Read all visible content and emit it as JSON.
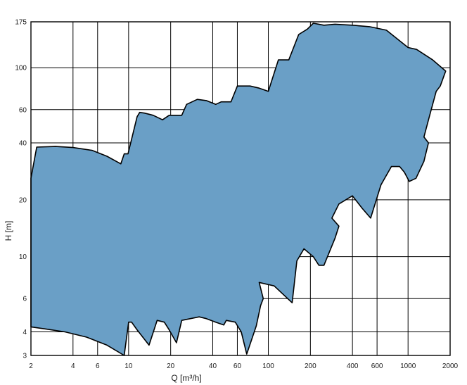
{
  "chart_data": {
    "type": "area",
    "title": "",
    "xlabel": "Q [m³/h]",
    "ylabel": "H [m]",
    "x_scale": "log",
    "y_scale": "log",
    "xlim": [
      2,
      2000
    ],
    "ylim": [
      3,
      175
    ],
    "grid": true,
    "fill_color": "#6a9fc6",
    "outline_color": "#000000",
    "grid_color": "#000000",
    "x_ticks": [
      {
        "value": 2,
        "label": "2"
      },
      {
        "value": 4,
        "label": "4"
      },
      {
        "value": 6,
        "label": "6"
      },
      {
        "value": 10,
        "label": "10"
      },
      {
        "value": 20,
        "label": "20"
      },
      {
        "value": 40,
        "label": "40"
      },
      {
        "value": 60,
        "label": "60"
      },
      {
        "value": 100,
        "label": "100"
      },
      {
        "value": 200,
        "label": "200"
      },
      {
        "value": 400,
        "label": "400"
      },
      {
        "value": 600,
        "label": "600"
      },
      {
        "value": 1000,
        "label": "1000"
      },
      {
        "value": 2000,
        "label": "2000"
      }
    ],
    "y_ticks": [
      {
        "value": 3,
        "label": "3"
      },
      {
        "value": 4,
        "label": "4"
      },
      {
        "value": 6,
        "label": "6"
      },
      {
        "value": 10,
        "label": "10"
      },
      {
        "value": 20,
        "label": "20"
      },
      {
        "value": 40,
        "label": "40"
      },
      {
        "value": 60,
        "label": "60"
      },
      {
        "value": 100,
        "label": "100"
      },
      {
        "value": 175,
        "label": "175"
      }
    ],
    "envelope": [
      [
        2.0,
        26
      ],
      [
        2.2,
        38
      ],
      [
        3,
        38.3
      ],
      [
        4,
        37.8
      ],
      [
        5.5,
        36.5
      ],
      [
        7,
        34
      ],
      [
        8.8,
        31
      ],
      [
        9.3,
        35
      ],
      [
        9.9,
        35
      ],
      [
        11.5,
        55
      ],
      [
        12,
        58
      ],
      [
        13,
        57.5
      ],
      [
        15,
        56
      ],
      [
        17.5,
        53
      ],
      [
        19.5,
        56
      ],
      [
        24,
        56
      ],
      [
        26,
        64
      ],
      [
        31,
        68
      ],
      [
        36,
        67
      ],
      [
        42,
        64
      ],
      [
        46,
        66
      ],
      [
        54,
        66
      ],
      [
        60,
        80
      ],
      [
        74,
        80
      ],
      [
        86,
        78
      ],
      [
        100,
        75
      ],
      [
        118,
        110
      ],
      [
        140,
        110
      ],
      [
        165,
        150
      ],
      [
        190,
        160
      ],
      [
        210,
        172
      ],
      [
        250,
        168
      ],
      [
        300,
        170
      ],
      [
        400,
        168
      ],
      [
        530,
        165
      ],
      [
        700,
        158
      ],
      [
        1000,
        128
      ],
      [
        1150,
        125
      ],
      [
        1500,
        110
      ],
      [
        1860,
        96
      ],
      [
        1700,
        80
      ],
      [
        1590,
        75
      ],
      [
        1420,
        55
      ],
      [
        1300,
        43
      ],
      [
        1400,
        40
      ],
      [
        1300,
        32
      ],
      [
        1140,
        26
      ],
      [
        1020,
        25
      ],
      [
        940,
        28
      ],
      [
        870,
        30
      ],
      [
        760,
        30
      ],
      [
        640,
        24
      ],
      [
        540,
        16
      ],
      [
        470,
        18
      ],
      [
        400,
        21
      ],
      [
        320,
        19
      ],
      [
        285,
        16
      ],
      [
        320,
        14.5
      ],
      [
        300,
        12.5
      ],
      [
        250,
        9
      ],
      [
        230,
        9
      ],
      [
        210,
        10
      ],
      [
        180,
        11
      ],
      [
        160,
        9.5
      ],
      [
        148,
        5.7
      ],
      [
        110,
        7
      ],
      [
        86,
        7.3
      ],
      [
        92,
        6
      ],
      [
        88,
        5.5
      ],
      [
        82,
        4.3
      ],
      [
        70,
        3.05
      ],
      [
        64,
        4
      ],
      [
        58,
        4.5
      ],
      [
        50,
        4.6
      ],
      [
        48,
        4.35
      ],
      [
        42,
        4.5
      ],
      [
        36,
        4.7
      ],
      [
        32,
        4.8
      ],
      [
        24,
        4.6
      ],
      [
        22,
        3.5
      ],
      [
        19.5,
        4.1
      ],
      [
        18,
        4.5
      ],
      [
        16,
        4.6
      ],
      [
        14,
        3.4
      ],
      [
        11.5,
        4.1
      ],
      [
        10.5,
        4.5
      ],
      [
        10,
        4.5
      ],
      [
        9.3,
        3.0
      ],
      [
        7,
        3.4
      ],
      [
        5,
        3.75
      ],
      [
        3.5,
        4.0
      ],
      [
        2.5,
        4.15
      ],
      [
        2.0,
        4.25
      ]
    ]
  }
}
